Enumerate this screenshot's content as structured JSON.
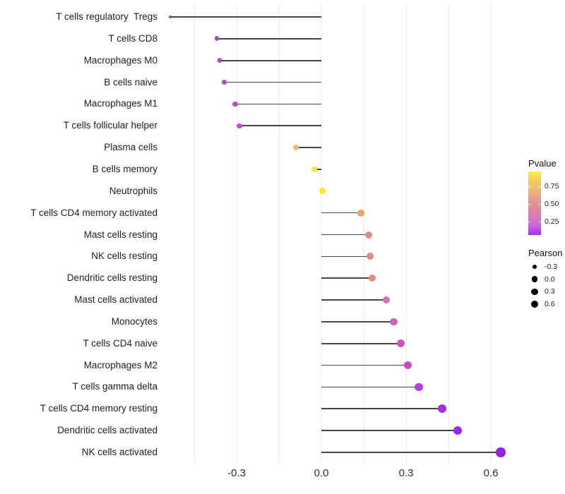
{
  "chart_data": {
    "type": "lollipop",
    "orientation": "horizontal",
    "title": "",
    "xlabel": "",
    "ylabel": "",
    "xlim": [
      -0.6,
      0.72
    ],
    "grid": true,
    "x_ticks": [
      {
        "v": -0.3,
        "label": "-0.3"
      },
      {
        "v": 0.0,
        "label": "0.0"
      },
      {
        "v": 0.3,
        "label": "0.3"
      },
      {
        "v": 0.6,
        "label": "0.6"
      }
    ],
    "x_gridlines": [
      -0.45,
      -0.3,
      -0.15,
      0.0,
      0.15,
      0.3,
      0.45,
      0.6
    ],
    "stem_color": "#454545",
    "points": [
      {
        "label": "T cells regulatory  Tregs",
        "pearson": -0.535,
        "dot_color": "#A335C8",
        "dot_diameter": 4.0
      },
      {
        "label": "T cells CD8",
        "pearson": -0.37,
        "dot_color": "#B440CB",
        "dot_diameter": 6.8
      },
      {
        "label": "Macrophages M0",
        "pearson": -0.36,
        "dot_color": "#B542CC",
        "dot_diameter": 6.8
      },
      {
        "label": "B cells naive",
        "pearson": -0.345,
        "dot_color": "#B846C9",
        "dot_diameter": 7.0
      },
      {
        "label": "Macrophages M1",
        "pearson": -0.305,
        "dot_color": "#BB4CC7",
        "dot_diameter": 7.2
      },
      {
        "label": "T cells follicular helper",
        "pearson": -0.29,
        "dot_color": "#BE52CB",
        "dot_diameter": 7.4
      },
      {
        "label": "Plasma cells",
        "pearson": -0.09,
        "dot_color": "#ECB96E",
        "dot_diameter": 8.4
      },
      {
        "label": "B cells memory",
        "pearson": -0.025,
        "dot_color": "#F7E93C",
        "dot_diameter": 8.6
      },
      {
        "label": "Neutrophils",
        "pearson": 0.003,
        "dot_color": "#F5EF19",
        "dot_diameter": 8.8
      },
      {
        "label": "T cells CD4 memory activated",
        "pearson": 0.14,
        "dot_color": "#E9A46E",
        "dot_diameter": 9.8
      },
      {
        "label": "Mast cells resting",
        "pearson": 0.167,
        "dot_color": "#E08D84",
        "dot_diameter": 10.0
      },
      {
        "label": "NK cells resting",
        "pearson": 0.172,
        "dot_color": "#DF8B84",
        "dot_diameter": 10.0
      },
      {
        "label": "Dendritic cells resting",
        "pearson": 0.18,
        "dot_color": "#DE8982",
        "dot_diameter": 10.2
      },
      {
        "label": "Mast cells activated",
        "pearson": 0.23,
        "dot_color": "#D372A7",
        "dot_diameter": 10.6
      },
      {
        "label": "Monocytes",
        "pearson": 0.257,
        "dot_color": "#CD61B3",
        "dot_diameter": 10.8
      },
      {
        "label": "T cells CD4 naive",
        "pearson": 0.282,
        "dot_color": "#C955BF",
        "dot_diameter": 11.0
      },
      {
        "label": "Macrophages M2",
        "pearson": 0.306,
        "dot_color": "#C34DCB",
        "dot_diameter": 11.2
      },
      {
        "label": "T cells gamma delta",
        "pearson": 0.345,
        "dot_color": "#B93ED9",
        "dot_diameter": 11.6
      },
      {
        "label": "T cells CD4 memory resting",
        "pearson": 0.427,
        "dot_color": "#A42BE5",
        "dot_diameter": 12.0
      },
      {
        "label": "Dendritic cells activated",
        "pearson": 0.483,
        "dot_color": "#9D26E9",
        "dot_diameter": 12.4
      },
      {
        "label": "NK cells activated",
        "pearson": 0.635,
        "dot_color": "#9721E3",
        "dot_diameter": 13.2
      }
    ],
    "legends": {
      "pvalue": {
        "title": "Pvalue",
        "tick_labels": [
          "0.75",
          "0.50",
          "0.25"
        ],
        "gradient_top_to_bottom": [
          "#FBF144",
          "#F2CC64",
          "#EEBB76",
          "#E39A90",
          "#DE8C9E",
          "#D678BE",
          "#CB64DA",
          "#A92CF3"
        ]
      },
      "pearson": {
        "title": "Pearson",
        "dot_color": "#000000",
        "entries": [
          {
            "label": "-0.3",
            "dot_diameter": 6.6
          },
          {
            "label": "0.0",
            "dot_diameter": 8.6
          },
          {
            "label": "0.3",
            "dot_diameter": 9.4
          },
          {
            "label": "0.6",
            "dot_diameter": 10.6
          }
        ]
      }
    }
  }
}
